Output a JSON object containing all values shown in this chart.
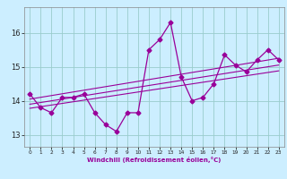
{
  "xlabel": "Windchill (Refroidissement éolien,°C)",
  "x": [
    0,
    1,
    2,
    3,
    4,
    5,
    6,
    7,
    8,
    9,
    10,
    11,
    12,
    13,
    14,
    15,
    16,
    17,
    18,
    19,
    20,
    21,
    22,
    23
  ],
  "line1": [
    14.2,
    13.8,
    13.65,
    14.1,
    14.1,
    14.2,
    13.65,
    13.3,
    13.1,
    13.65,
    13.65,
    15.5,
    15.8,
    16.3,
    14.7,
    14.0,
    14.1,
    14.5,
    15.35,
    15.05,
    14.85,
    15.2,
    15.5,
    15.2
  ],
  "trend1_x": [
    0,
    23
  ],
  "trend1_y": [
    14.05,
    15.25
  ],
  "trend2_x": [
    0,
    23
  ],
  "trend2_y": [
    13.9,
    15.05
  ],
  "trend3_x": [
    0,
    23
  ],
  "trend3_y": [
    13.78,
    14.88
  ],
  "line_color": "#990099",
  "bg_color": "#cceeff",
  "grid_color": "#99cccc",
  "ylim": [
    12.65,
    16.75
  ],
  "yticks": [
    13,
    14,
    15,
    16
  ],
  "xticks": [
    0,
    1,
    2,
    3,
    4,
    5,
    6,
    7,
    8,
    9,
    10,
    11,
    12,
    13,
    14,
    15,
    16,
    17,
    18,
    19,
    20,
    21,
    22,
    23
  ]
}
